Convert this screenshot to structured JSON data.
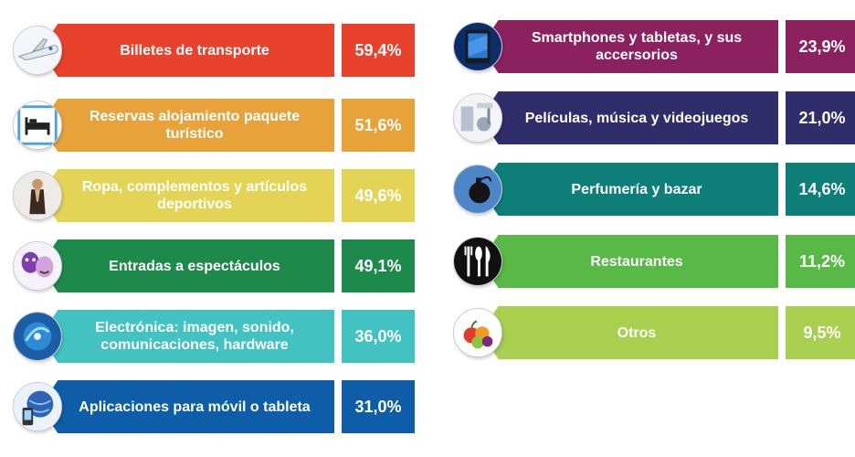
{
  "chart_data": {
    "type": "table",
    "title": "",
    "unit": "%",
    "categories": [
      "Billetes de transporte",
      "Reservas alojamiento paquete turístico",
      "Ropa, complementos y artículos deportivos",
      "Entradas a espectáculos",
      "Electrónica: imagen, sonido, comunicaciones, hardware",
      "Aplicaciones para móvil o tableta",
      "Smartphones y tabletas, y sus accersorios",
      "Películas, música y videojuegos",
      "Perfumería y bazar",
      "Restaurantes",
      "Otros"
    ],
    "values": [
      59.4,
      51.6,
      49.6,
      49.1,
      36.0,
      31.0,
      23.9,
      21.0,
      14.6,
      11.2,
      9.5
    ],
    "items": [
      {
        "label": "Billetes de transporte",
        "value_text": "59,4%",
        "color": "#e8412c",
        "icon": "airplane-icon"
      },
      {
        "label": "Reservas alojamiento paquete turístico",
        "value_text": "51,6%",
        "color": "#e8a23a",
        "icon": "bed-icon"
      },
      {
        "label": "Ropa, complementos y artículos deportivos",
        "value_text": "49,6%",
        "color": "#e3d456",
        "icon": "fashion-model-icon"
      },
      {
        "label": "Entradas a espectáculos",
        "value_text": "49,1%",
        "color": "#1d8a4c",
        "icon": "theater-masks-icon"
      },
      {
        "label": "Electrónica: imagen, sonido, comunicaciones, hardware",
        "value_text": "36,0%",
        "color": "#43c2c2",
        "icon": "electronics-icon"
      },
      {
        "label": "Aplicaciones para móvil o tableta",
        "value_text": "31,0%",
        "color": "#0e5da8",
        "icon": "mobile-globe-icon"
      },
      {
        "label": "Smartphones y tabletas, y sus accersorios",
        "value_text": "23,9%",
        "color": "#8c2160",
        "icon": "tablet-icon"
      },
      {
        "label": "Películas, música y videojuegos",
        "value_text": "21,0%",
        "color": "#2f2d6a",
        "icon": "music-film-icon"
      },
      {
        "label": "Perfumería y bazar",
        "value_text": "14,6%",
        "color": "#0e7e78",
        "icon": "perfume-bottle-icon"
      },
      {
        "label": "Restaurantes",
        "value_text": "11,2%",
        "color": "#58b947",
        "icon": "cutlery-icon"
      },
      {
        "label": "Otros",
        "value_text": "9,5%",
        "color": "#a9cf4f",
        "icon": "fruit-icon"
      }
    ]
  }
}
